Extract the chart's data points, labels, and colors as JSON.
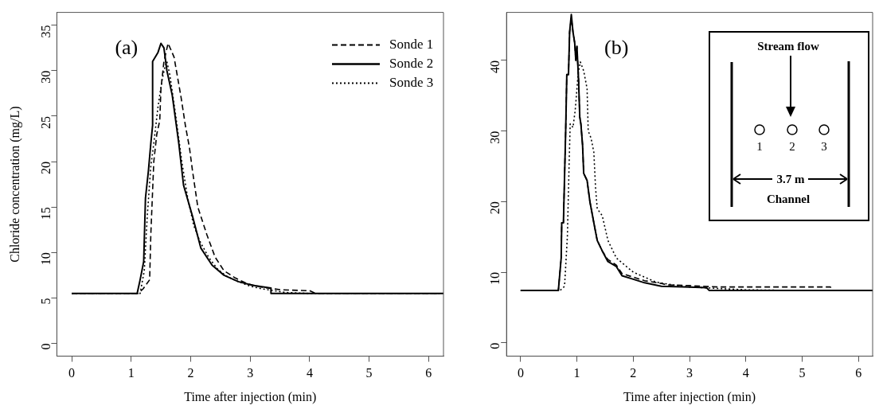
{
  "chart_data": [
    {
      "type": "line",
      "ylabel": "Chloride concentration (mg/L)",
      "xlabel": "Time after injection (min)",
      "annotations": [
        "(a)"
      ],
      "xlim": [
        -0.25,
        6.25
      ],
      "ylim": [
        -1.4,
        36.4
      ],
      "xticks": [
        0,
        1,
        2,
        3,
        4,
        5,
        6
      ],
      "yticks": [
        0,
        5,
        10,
        15,
        20,
        25,
        30,
        35
      ],
      "grid": false,
      "legend": "top right",
      "marker": "none",
      "series": [
        {
          "name": "Sonde 1",
          "color": "#000000",
          "line_style": "dashed",
          "x": [
            0,
            1.12,
            1.2,
            1.31,
            1.33,
            1.38,
            1.43,
            1.48,
            1.5,
            1.55,
            1.62,
            1.72,
            1.84,
            1.91,
            1.98,
            2.03,
            2.12,
            2.27,
            2.41,
            2.56,
            2.75,
            2.94,
            3.18,
            3.52,
            4.0,
            4.1,
            6.2
          ],
          "values": [
            5.5,
            5.5,
            6,
            7,
            12,
            20,
            23,
            24.5,
            28,
            31,
            33,
            31.5,
            27,
            24,
            21.5,
            19,
            15,
            12,
            9.5,
            8,
            7.2,
            6.6,
            6.2,
            5.9,
            5.8,
            5.5,
            5.5
          ]
        },
        {
          "name": "Sonde 2",
          "color": "#000000",
          "line_style": "solid",
          "x": [
            0,
            1.1,
            1.15,
            1.21,
            1.24,
            1.29,
            1.33,
            1.36,
            1.36,
            1.45,
            1.5,
            1.55,
            1.6,
            1.69,
            1.8,
            1.88,
            2.03,
            2.17,
            2.36,
            2.56,
            2.8,
            3.04,
            3.35,
            3.35,
            6.25
          ],
          "values": [
            5.5,
            5.5,
            7,
            9,
            16,
            19,
            22,
            24,
            31,
            32,
            33,
            32.5,
            30,
            27.3,
            22,
            17.4,
            14,
            10.5,
            8.6,
            7.5,
            6.8,
            6.4,
            6.1,
            5.5,
            5.5
          ]
        },
        {
          "name": "Sonde 3",
          "color": "#000000",
          "line_style": "dotted",
          "x": [
            0,
            1.15,
            1.22,
            1.27,
            1.33,
            1.38,
            1.45,
            1.52,
            1.57,
            1.6,
            1.65,
            1.75,
            1.85,
            1.95,
            2.05,
            2.15,
            2.3,
            2.45,
            2.6,
            2.8,
            3.0,
            3.2,
            3.4,
            3.6,
            4.0,
            6.2
          ],
          "values": [
            5.5,
            5.5,
            8,
            14,
            19.5,
            22,
            26,
            29,
            30.5,
            31,
            29.5,
            25,
            20,
            16,
            13,
            11.3,
            9.5,
            8.2,
            7.4,
            6.8,
            6.3,
            6.0,
            5.8,
            5.6,
            5.5,
            5.5
          ]
        }
      ]
    },
    {
      "type": "line",
      "xlabel": "Time after injection (min)",
      "annotations": [
        "(b)",
        "Stream flow",
        "1",
        "2",
        "3",
        "3.7 m",
        "Channel"
      ],
      "xlim": [
        -0.25,
        6.25
      ],
      "ylim": [
        -1.9,
        46.8
      ],
      "xticks": [
        0,
        1,
        2,
        3,
        4,
        5,
        6
      ],
      "yticks": [
        0,
        10,
        20,
        30,
        40
      ],
      "grid": false,
      "marker": "none",
      "series": [
        {
          "color": "#000000",
          "line_style": "dashed",
          "x": [
            0,
            0.67,
            0.72,
            0.73,
            0.76,
            0.8,
            0.82,
            0.85,
            0.87,
            0.9,
            0.93,
            0.96,
            0.98,
            1.0,
            1.03,
            1.05,
            1.07,
            1.1,
            1.12,
            1.18,
            1.23,
            1.3,
            1.36,
            1.45,
            1.55,
            1.7,
            1.8,
            2.0,
            2.2,
            2.5,
            2.6,
            3.0,
            3.5,
            5.5,
            5.55
          ],
          "values": [
            7.4,
            7.4,
            12,
            17,
            17,
            30,
            38,
            38,
            44,
            46,
            44,
            42.5,
            40,
            42,
            37,
            32,
            31,
            28,
            24,
            23,
            20,
            17,
            14.5,
            13,
            11.8,
            11,
            9.8,
            9.3,
            8.8,
            8.4,
            8.2,
            8.1,
            7.9,
            7.9,
            7.4
          ]
        },
        {
          "color": "#000000",
          "line_style": "solid",
          "x": [
            0,
            0.67,
            0.72,
            0.73,
            0.76,
            0.8,
            0.82,
            0.85,
            0.87,
            0.9,
            0.93,
            0.96,
            0.98,
            1.0,
            1.03,
            1.05,
            1.07,
            1.1,
            1.12,
            1.18,
            1.23,
            1.3,
            1.36,
            1.45,
            1.55,
            1.7,
            1.8,
            2.0,
            2.2,
            2.5,
            3.0,
            3.3,
            3.35,
            6.25
          ],
          "values": [
            7.4,
            7.4,
            12,
            17,
            17,
            30,
            38,
            38,
            44,
            46.5,
            44,
            42.5,
            40,
            42,
            37,
            32,
            31,
            28,
            24,
            23,
            20,
            17,
            14.5,
            13,
            11.5,
            10.8,
            9.5,
            9.0,
            8.5,
            8.0,
            7.9,
            7.8,
            7.4,
            7.4
          ]
        },
        {
          "color": "#000000",
          "line_style": "dotted",
          "x": [
            0,
            0.7,
            0.78,
            0.83,
            0.86,
            0.88,
            0.93,
            0.97,
            1.02,
            1.06,
            1.12,
            1.18,
            1.2,
            1.25,
            1.3,
            1.33,
            1.36,
            1.45,
            1.55,
            1.7,
            1.85,
            2.0,
            2.2,
            2.4,
            2.7,
            3.0,
            3.5,
            4.0,
            5.0,
            6.2
          ],
          "values": [
            7.4,
            7.4,
            8,
            15,
            25,
            31,
            30.5,
            33,
            38,
            39.8,
            38.5,
            36,
            30,
            29,
            27,
            22,
            19,
            18,
            14.5,
            12,
            11,
            10,
            9.3,
            8.6,
            8.2,
            7.9,
            7.7,
            7.5,
            7.4,
            7.4
          ]
        }
      ]
    }
  ]
}
